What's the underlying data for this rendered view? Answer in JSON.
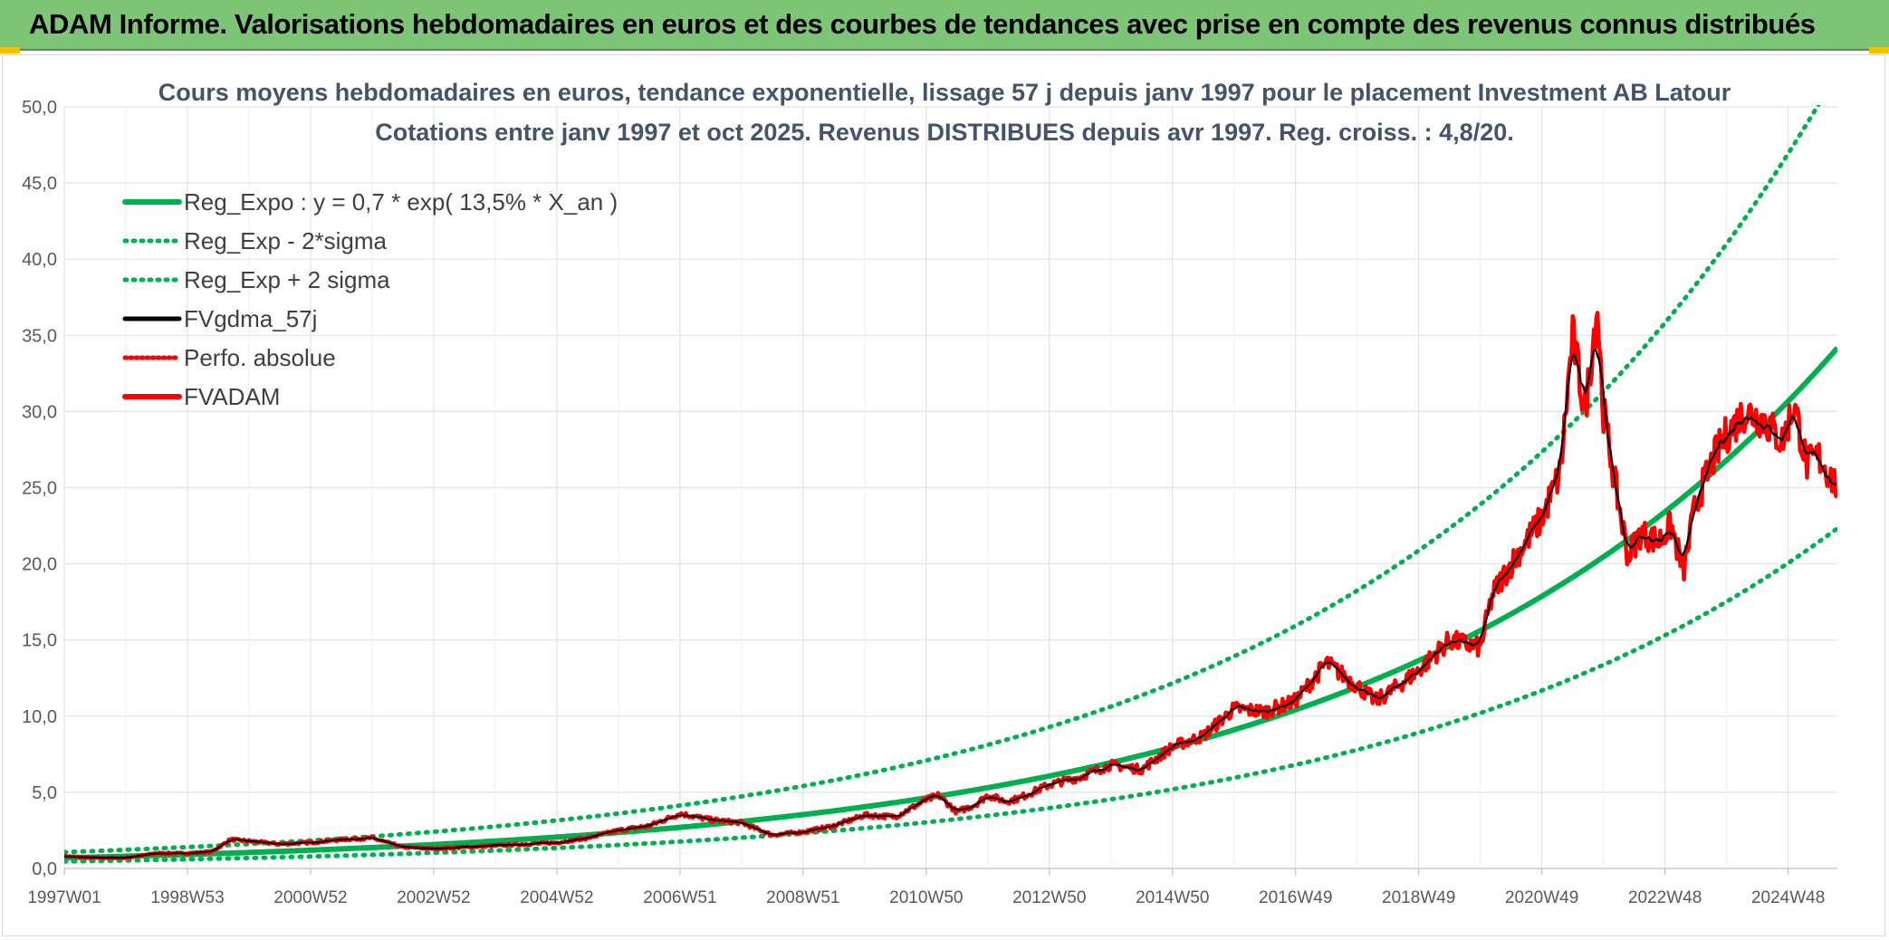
{
  "banner": {
    "title": "ADAM Informe. Valorisations hebdomadaires en euros et des courbes de tendances avec prise en compte des revenus connus distribués",
    "background": "#7cc576"
  },
  "chart_data": {
    "type": "line",
    "title": "Cours moyens hebdomadaires en euros, tendance exponentielle, lissage 57 j depuis janv 1997 pour le placement Investment AB Latour",
    "subtitle": "Cotations entre janv 1997 et oct 2025. Revenus DISTRIBUES depuis avr 1997. Reg. croiss. : 4,8/20.",
    "xlabel": "",
    "ylabel": "",
    "xlim": [
      1997.0,
      2025.8
    ],
    "ylim": [
      0,
      50
    ],
    "yticks": [
      "0,0",
      "5,0",
      "10,0",
      "15,0",
      "20,0",
      "25,0",
      "30,0",
      "35,0",
      "40,0",
      "45,0",
      "50,0"
    ],
    "xticks": [
      {
        "label": "1997W01",
        "x": 1997.0
      },
      {
        "label": "1998W53",
        "x": 1999.0
      },
      {
        "label": "2000W52",
        "x": 2001.0
      },
      {
        "label": "2002W52",
        "x": 2003.0
      },
      {
        "label": "2004W52",
        "x": 2005.0
      },
      {
        "label": "2006W51",
        "x": 2007.0
      },
      {
        "label": "2008W51",
        "x": 2009.0
      },
      {
        "label": "2010W50",
        "x": 2011.0
      },
      {
        "label": "2012W50",
        "x": 2013.0
      },
      {
        "label": "2014W50",
        "x": 2015.0
      },
      {
        "label": "2016W49",
        "x": 2017.0
      },
      {
        "label": "2018W49",
        "x": 2019.0
      },
      {
        "label": "2020W49",
        "x": 2021.0
      },
      {
        "label": "2022W48",
        "x": 2023.0
      },
      {
        "label": "2024W48",
        "x": 2025.0
      }
    ],
    "grid": true,
    "legend_position": "top-left",
    "regression": {
      "a": 0.7,
      "rate": 0.135,
      "sigma_factor": 1.53
    },
    "series": [
      {
        "name": "Reg_Expo : y = 0,7 * exp( 13,5% *  X_an )",
        "style": "solid",
        "color": "#00b050",
        "role": "trend"
      },
      {
        "name": "Reg_Exp - 2*sigma",
        "style": "dotted",
        "color": "#00b050",
        "role": "lower"
      },
      {
        "name": "Reg_Exp + 2 sigma",
        "style": "dotted",
        "color": "#00b050",
        "role": "upper"
      },
      {
        "name": "FVgdma_57j",
        "style": "solid",
        "color": "#000000",
        "role": "smooth"
      },
      {
        "name": "Perfo. absolue",
        "style": "dotted",
        "color": "#ff0000",
        "role": "perfo"
      },
      {
        "name": "FVADAM",
        "style": "solid",
        "color": "#ff0000",
        "role": "price"
      }
    ],
    "price_points": {
      "x": [
        1997.0,
        1997.5,
        1998.0,
        1998.5,
        1999.0,
        1999.4,
        1999.7,
        2000.0,
        2000.5,
        2001.0,
        2001.5,
        2002.0,
        2002.5,
        2003.0,
        2003.5,
        2004.0,
        2004.5,
        2005.0,
        2005.5,
        2006.0,
        2006.5,
        2007.0,
        2007.5,
        2008.0,
        2008.5,
        2009.0,
        2009.5,
        2010.0,
        2010.5,
        2011.0,
        2011.2,
        2011.5,
        2011.8,
        2012.0,
        2012.3,
        2012.5,
        2013.0,
        2013.5,
        2014.0,
        2014.5,
        2015.0,
        2015.5,
        2016.0,
        2016.5,
        2017.0,
        2017.5,
        2018.0,
        2018.3,
        2018.5,
        2019.0,
        2019.5,
        2020.0,
        2020.2,
        2020.5,
        2021.0,
        2021.3,
        2021.5,
        2021.7,
        2021.9,
        2022.0,
        2022.2,
        2022.4,
        2022.6,
        2022.9,
        2023.1,
        2023.3,
        2023.5,
        2023.8,
        2024.0,
        2024.3,
        2024.6,
        2024.9,
        2025.1,
        2025.3,
        2025.5,
        2025.8
      ],
      "y": [
        0.8,
        0.7,
        0.7,
        1.0,
        1.0,
        1.1,
        1.9,
        1.8,
        1.6,
        1.7,
        1.9,
        2.0,
        1.4,
        1.3,
        1.4,
        1.5,
        1.6,
        1.7,
        2.0,
        2.5,
        2.8,
        3.6,
        3.2,
        3.0,
        2.2,
        2.4,
        2.8,
        3.5,
        3.4,
        4.5,
        4.8,
        3.7,
        4.2,
        4.8,
        4.4,
        4.6,
        5.5,
        6.0,
        6.8,
        6.5,
        8.0,
        8.7,
        10.5,
        10.3,
        11.0,
        13.5,
        12.0,
        11.0,
        11.5,
        13.0,
        15.0,
        14.5,
        18.0,
        20.0,
        23.0,
        26.0,
        35.0,
        30.0,
        37.0,
        30.0,
        25.0,
        20.5,
        22.0,
        21.5,
        22.5,
        19.5,
        24.0,
        27.0,
        28.5,
        30.0,
        29.5,
        28.0,
        30.5,
        26.5,
        27.0,
        25.0
      ]
    }
  }
}
